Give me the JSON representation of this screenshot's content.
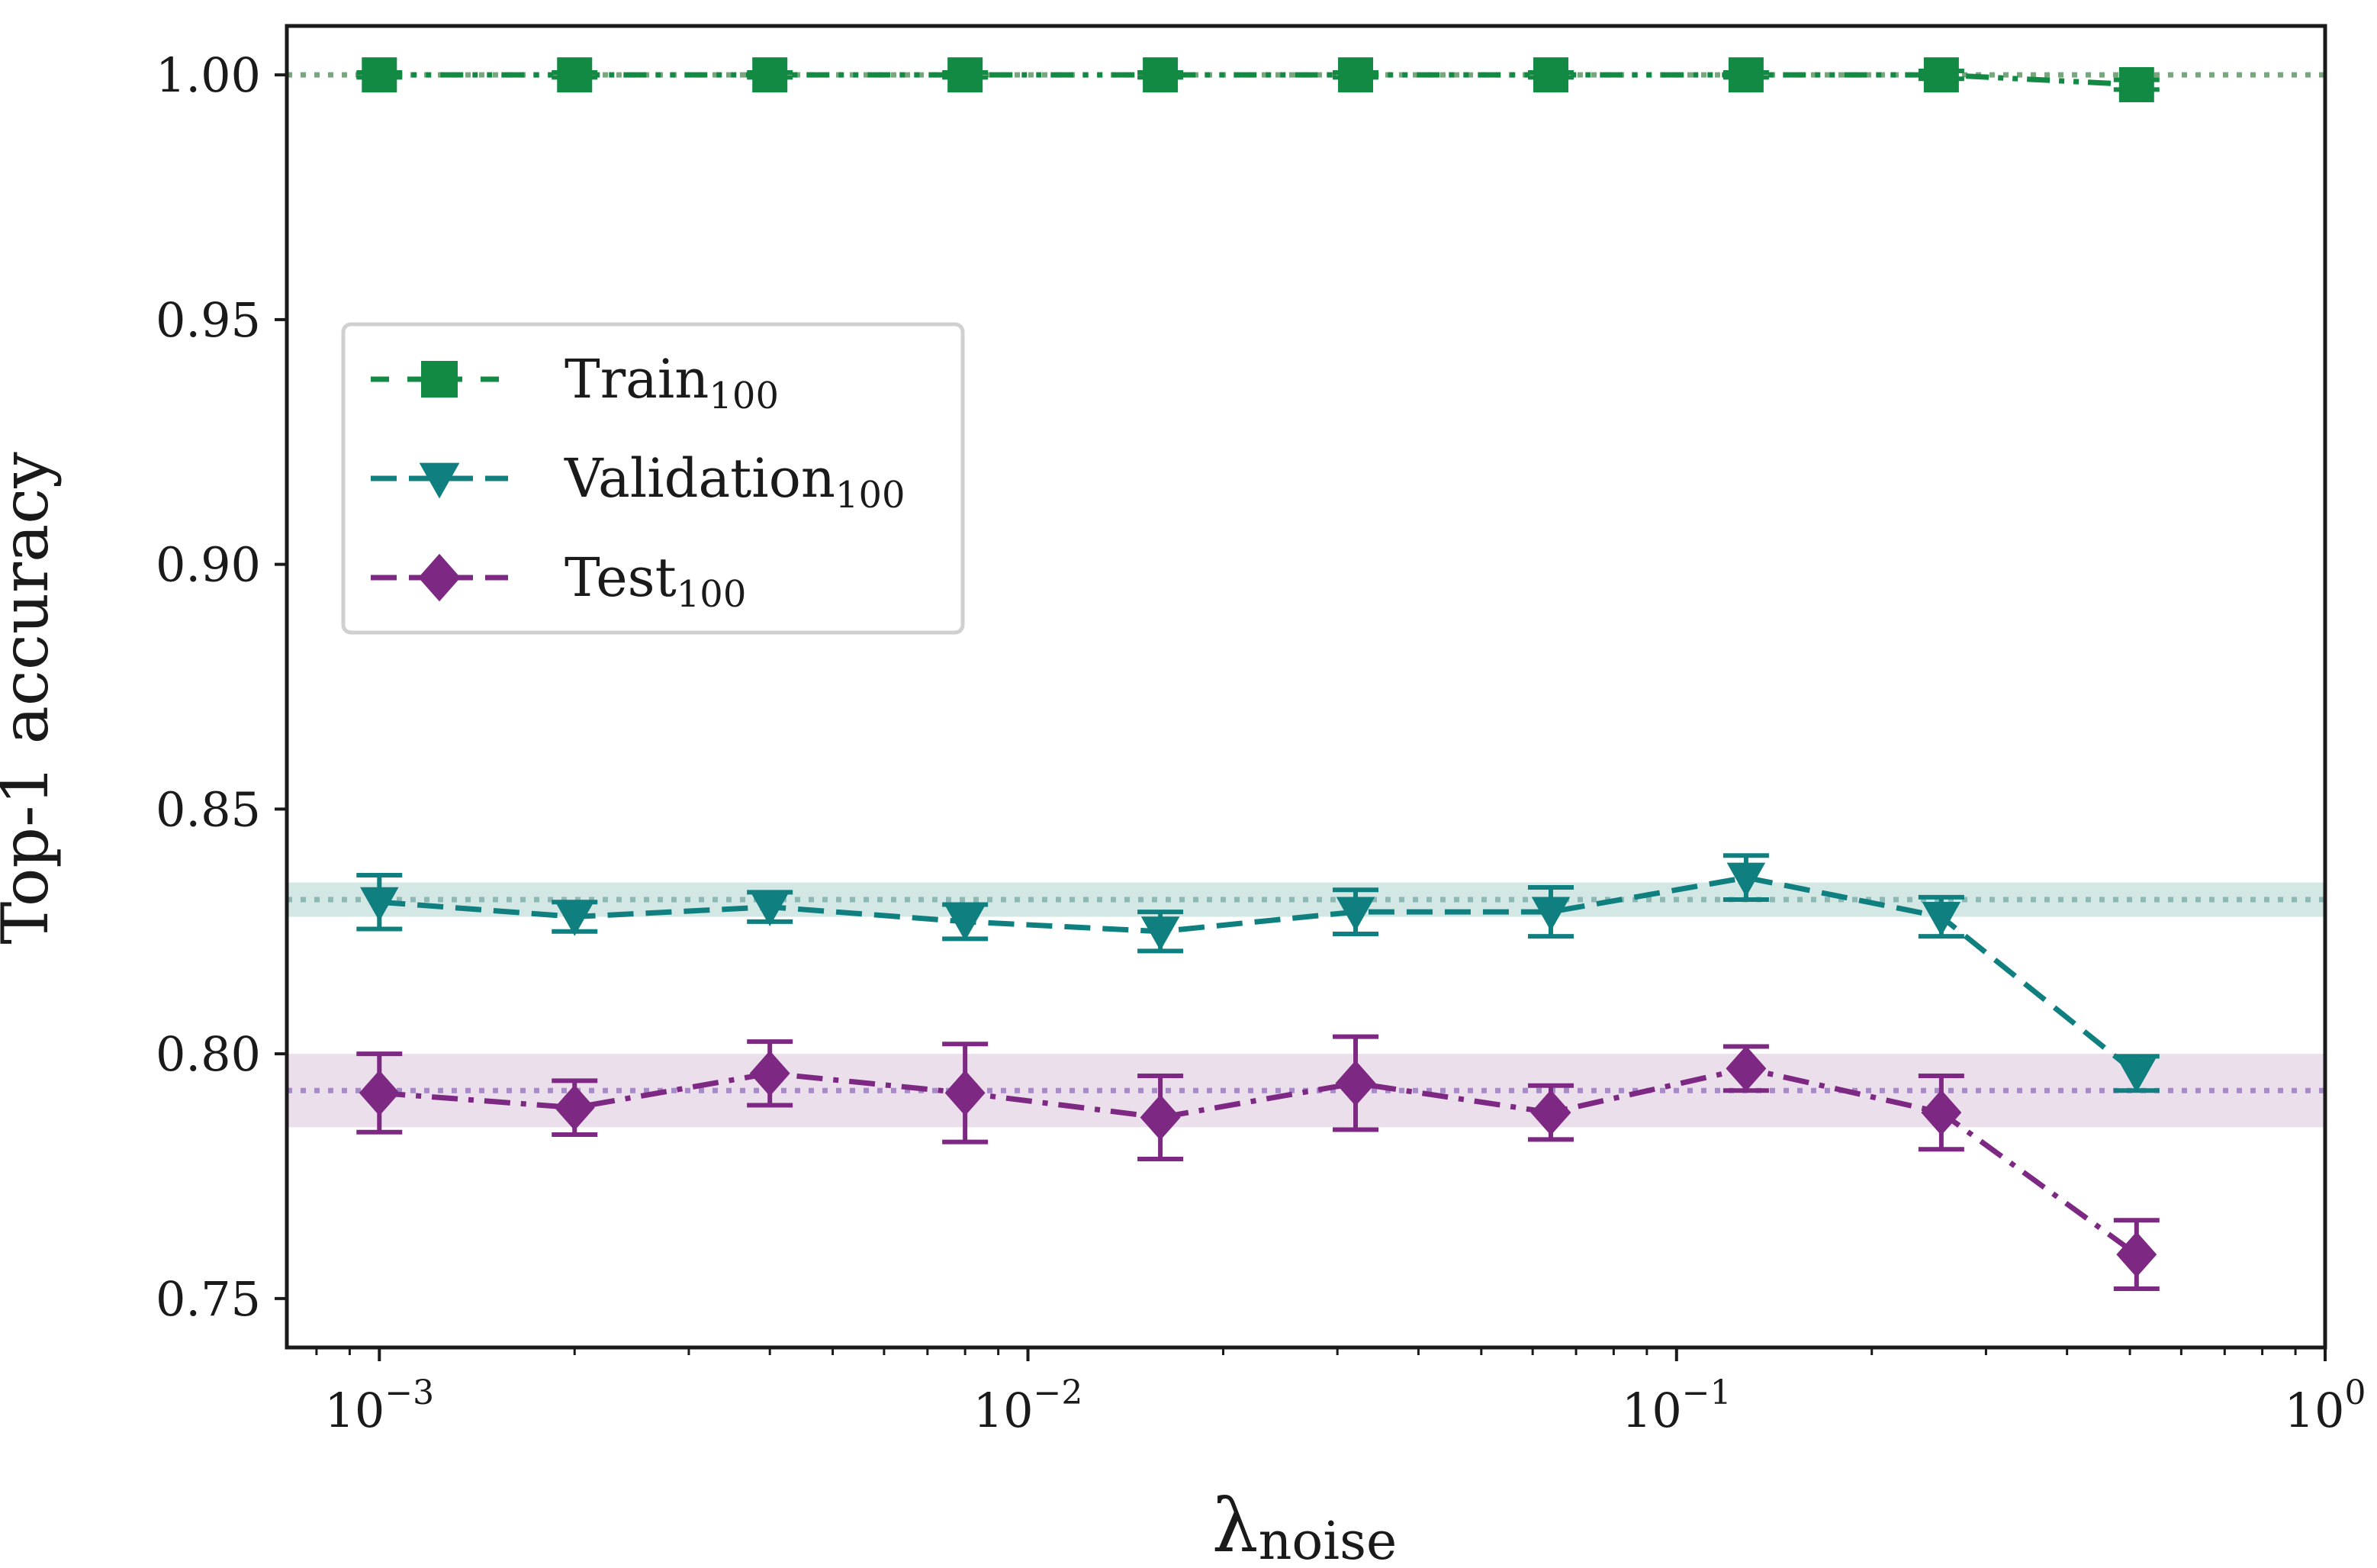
{
  "chart_data": {
    "type": "line",
    "title": "",
    "xlabel": "λ",
    "xlabel_subscript": "noise",
    "ylabel": "Top-1 accuracy",
    "xscale": "log",
    "xlim": [
      0.00072,
      1.0
    ],
    "ylim": [
      0.74,
      1.01
    ],
    "grid": false,
    "legend_position": "upper-left",
    "x": [
      0.001,
      0.002,
      0.004,
      0.008,
      0.016,
      0.032,
      0.064,
      0.128,
      0.256,
      0.512
    ],
    "x_ticks": [
      {
        "value": 0.001,
        "base": "10",
        "exp": "−3"
      },
      {
        "value": 0.01,
        "base": "10",
        "exp": "−2"
      },
      {
        "value": 0.1,
        "base": "10",
        "exp": "−1"
      },
      {
        "value": 1.0,
        "base": "10",
        "exp": "0"
      }
    ],
    "y_ticks": [
      {
        "value": 1.0,
        "label": "1.00"
      },
      {
        "value": 0.95,
        "label": "0.95"
      },
      {
        "value": 0.9,
        "label": "0.90"
      },
      {
        "value": 0.85,
        "label": "0.85"
      },
      {
        "value": 0.8,
        "label": "0.80"
      },
      {
        "value": 0.75,
        "label": "0.75"
      }
    ],
    "series": [
      {
        "name": "Train",
        "subscript": "100",
        "color": "#128a44",
        "marker": "square",
        "linestyle": "dashdotdot",
        "values": [
          1.0,
          1.0,
          1.0,
          1.0,
          1.0,
          1.0,
          1.0,
          1.0,
          1.0,
          0.998
        ],
        "errors": [
          0.0005,
          0.0005,
          0.0005,
          0.0005,
          0.0005,
          0.0005,
          0.0005,
          0.0005,
          0.0008,
          0.001
        ],
        "baseline": {
          "mean": 1.0,
          "std": 0.0,
          "color": "#7aa67d"
        }
      },
      {
        "name": "Validation",
        "subscript": "100",
        "color": "#0f7f7f",
        "marker": "triangle-down",
        "linestyle": "dashed",
        "values": [
          0.831,
          0.828,
          0.83,
          0.827,
          0.825,
          0.829,
          0.829,
          0.836,
          0.828,
          0.796
        ],
        "errors": [
          0.0055,
          0.003,
          0.003,
          0.0035,
          0.004,
          0.0045,
          0.005,
          0.0045,
          0.004,
          0.0035
        ],
        "baseline": {
          "mean": 0.8315,
          "std": 0.0035,
          "color": "#8fb8b4",
          "band_color": "#d3e7e5"
        }
      },
      {
        "name": "Test",
        "subscript": "100",
        "color": "#7d2882",
        "marker": "diamond",
        "linestyle": "dashdot",
        "values": [
          0.792,
          0.789,
          0.796,
          0.792,
          0.787,
          0.794,
          0.788,
          0.797,
          0.788,
          0.759
        ],
        "errors": [
          0.008,
          0.0055,
          0.0065,
          0.01,
          0.0085,
          0.0095,
          0.0055,
          0.0045,
          0.0075,
          0.007
        ],
        "baseline": {
          "mean": 0.7925,
          "std": 0.0075,
          "color": "#a78bc4",
          "band_color": "#ebdfeb"
        }
      }
    ]
  }
}
